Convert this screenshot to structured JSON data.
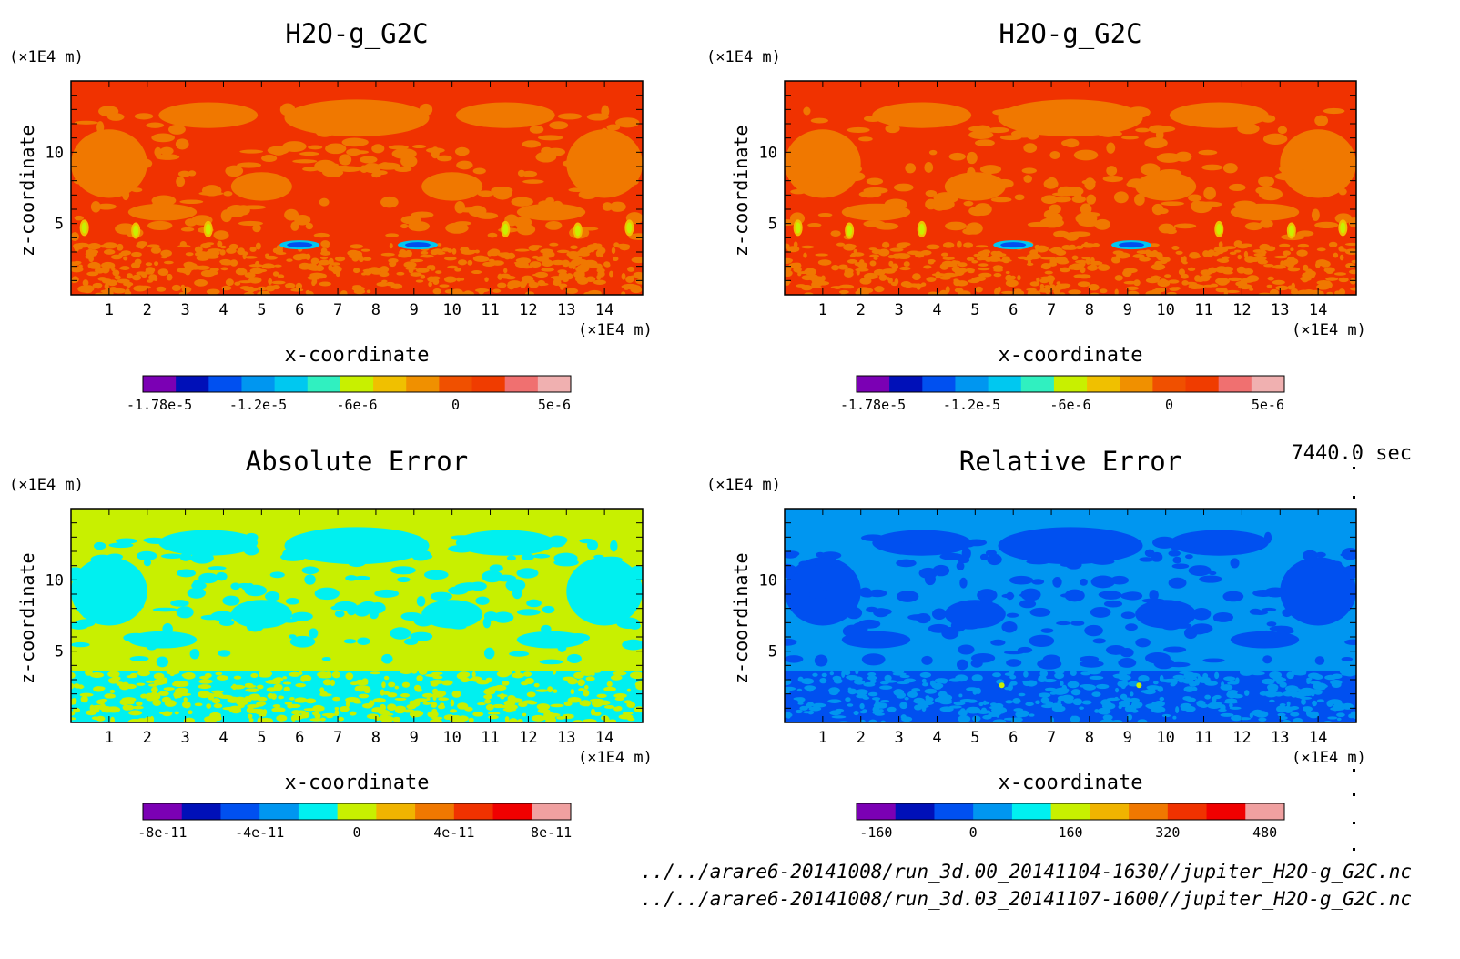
{
  "time_label": "7440.0 sec",
  "files": [
    "../../arare6-20141008/run_3d.00_20141104-1630//jupiter_H2O-g_G2C.nc",
    "../../arare6-20141008/run_3d.03_20141107-1600//jupiter_H2O-g_G2C.nc"
  ],
  "colors": {
    "purple": "#7b00b4",
    "navy": "#0010b8",
    "blue": "#0050f0",
    "azure": "#0096f0",
    "cyan": "#00f0f0",
    "lime": "#c8f000",
    "gold": "#f0b400",
    "orange": "#f07800",
    "redorange": "#f03200",
    "red": "#f00000",
    "pink": "#f0a0a0"
  },
  "chart_data": [
    {
      "type": "heatmap",
      "title": "H2O-g_G2C",
      "xlabel": "x-coordinate",
      "ylabel": "z-coordinate",
      "x_unit": "(×1E4 m)",
      "z_unit": "(×1E4 m)",
      "xlim": [
        0,
        15
      ],
      "ylim": [
        0,
        15
      ],
      "xticks": [
        1,
        2,
        3,
        4,
        5,
        6,
        7,
        8,
        9,
        10,
        11,
        12,
        13,
        14
      ],
      "yticks": [
        5,
        10
      ],
      "colorbar": {
        "colors": [
          "#7b00b4",
          "#0010b8",
          "#0050f0",
          "#0096f0",
          "#00c8f0",
          "#30f0c0",
          "#c8f000",
          "#f0c000",
          "#f09000",
          "#f05000",
          "#f03c00",
          "#f07070",
          "#f0b0b0"
        ],
        "tick_labels": [
          "-1.78e-5",
          "-1.2e-5",
          "-6e-6",
          "0",
          "5e-6"
        ]
      },
      "field": {
        "background": "redorange",
        "blob": "orange",
        "surface": "redorange",
        "surface_accent": "orange",
        "features": "plumes"
      }
    },
    {
      "type": "heatmap",
      "title": "H2O-g_G2C",
      "xlabel": "x-coordinate",
      "ylabel": "z-coordinate",
      "x_unit": "(×1E4 m)",
      "z_unit": "(×1E4 m)",
      "xlim": [
        0,
        15
      ],
      "ylim": [
        0,
        15
      ],
      "xticks": [
        1,
        2,
        3,
        4,
        5,
        6,
        7,
        8,
        9,
        10,
        11,
        12,
        13,
        14
      ],
      "yticks": [
        5,
        10
      ],
      "colorbar": {
        "colors": [
          "#7b00b4",
          "#0010b8",
          "#0050f0",
          "#0096f0",
          "#00c8f0",
          "#30f0c0",
          "#c8f000",
          "#f0c000",
          "#f09000",
          "#f05000",
          "#f03c00",
          "#f07070",
          "#f0b0b0"
        ],
        "tick_labels": [
          "-1.78e-5",
          "-1.2e-5",
          "-6e-6",
          "0",
          "5e-6"
        ]
      },
      "field": {
        "background": "redorange",
        "blob": "orange",
        "surface": "redorange",
        "surface_accent": "orange",
        "features": "plumes"
      }
    },
    {
      "type": "heatmap",
      "title": "Absolute Error",
      "xlabel": "x-coordinate",
      "ylabel": "z-coordinate",
      "x_unit": "(×1E4 m)",
      "z_unit": "(×1E4 m)",
      "xlim": [
        0,
        15
      ],
      "ylim": [
        0,
        15
      ],
      "xticks": [
        1,
        2,
        3,
        4,
        5,
        6,
        7,
        8,
        9,
        10,
        11,
        12,
        13,
        14
      ],
      "yticks": [
        5,
        10
      ],
      "colorbar": {
        "colors": [
          "#7b00b4",
          "#0010b8",
          "#0050f0",
          "#0096f0",
          "#00f0f0",
          "#c8f000",
          "#f0b400",
          "#f07800",
          "#f03200",
          "#f00000",
          "#f0a0a0"
        ],
        "tick_labels": [
          "-8e-11",
          "-4e-11",
          "0",
          "4e-11",
          "8e-11"
        ]
      },
      "field": {
        "background": "lime",
        "blob": "cyan",
        "surface": "cyan",
        "surface_accent": "lime",
        "features": "none"
      }
    },
    {
      "type": "heatmap",
      "title": "Relative Error",
      "xlabel": "x-coordinate",
      "ylabel": "z-coordinate",
      "x_unit": "(×1E4 m)",
      "z_unit": "(×1E4 m)",
      "xlim": [
        0,
        15
      ],
      "ylim": [
        0,
        15
      ],
      "xticks": [
        1,
        2,
        3,
        4,
        5,
        6,
        7,
        8,
        9,
        10,
        11,
        12,
        13,
        14
      ],
      "yticks": [
        5,
        10
      ],
      "colorbar": {
        "colors": [
          "#7b00b4",
          "#0010b8",
          "#0050f0",
          "#0096f0",
          "#00f0f0",
          "#c8f000",
          "#f0b400",
          "#f07800",
          "#f03200",
          "#f00000",
          "#f0a0a0"
        ],
        "tick_labels": [
          "-160",
          "0",
          "160",
          "320",
          "480"
        ]
      },
      "field": {
        "background": "azure",
        "blob": "blue",
        "surface": "blue",
        "surface_accent": "azure",
        "features": "dots"
      }
    }
  ]
}
